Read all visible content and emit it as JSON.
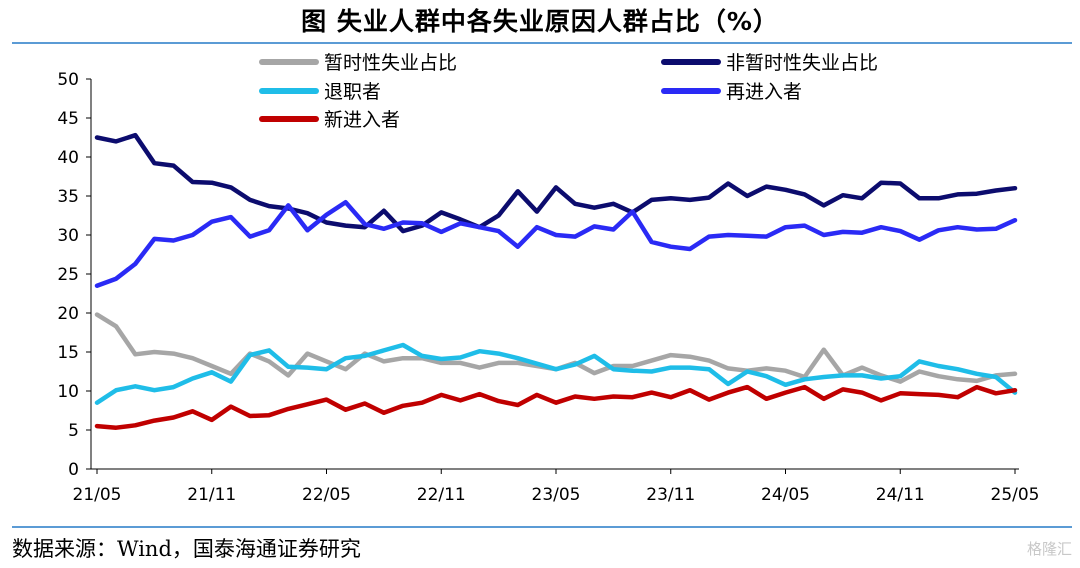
{
  "title": "图    失业人群中各失业原因人群占比（%）",
  "source": "数据来源：Wind，国泰海通证券研究",
  "watermark": "格隆汇",
  "chart_data": {
    "type": "line",
    "title": "图    失业人群中各失业原因人群占比（%）",
    "xlabel": "",
    "ylabel": "",
    "ylim": [
      0,
      50
    ],
    "yticks": [
      0,
      5,
      10,
      15,
      20,
      25,
      30,
      35,
      40,
      45,
      50
    ],
    "x_tick_labels": [
      "21/05",
      "21/11",
      "22/05",
      "22/11",
      "23/05",
      "23/11",
      "24/05",
      "24/11",
      "25/05"
    ],
    "x_tick_indices": [
      0,
      6,
      12,
      18,
      24,
      30,
      36,
      42,
      48
    ],
    "grid": false,
    "legend_position": "top",
    "series": [
      {
        "name": "暂时性失业占比",
        "color": "#a6a6a6",
        "values": [
          19.8,
          18.3,
          14.7,
          15.0,
          14.8,
          14.2,
          13.2,
          12.2,
          14.8,
          13.8,
          12.0,
          14.8,
          13.8,
          12.8,
          14.8,
          13.8,
          14.2,
          14.2,
          13.6,
          13.6,
          13.0,
          13.6,
          13.6,
          13.2,
          12.8,
          13.6,
          12.3,
          13.2,
          13.2,
          13.9,
          14.6,
          14.4,
          13.9,
          12.9,
          12.6,
          12.9,
          12.6,
          11.8,
          15.3,
          12.0,
          13.0,
          12.0,
          11.2,
          12.5,
          11.9,
          11.5,
          11.3,
          12.0,
          12.2
        ]
      },
      {
        "name": "非暂时性失业占比",
        "color": "#0c0c6e",
        "values": [
          42.5,
          42.0,
          42.8,
          39.2,
          38.9,
          36.8,
          36.7,
          36.1,
          34.5,
          33.7,
          33.4,
          32.8,
          31.6,
          31.2,
          31.0,
          33.1,
          30.5,
          31.2,
          32.9,
          32.0,
          31.0,
          32.5,
          35.6,
          33.0,
          36.1,
          34.0,
          33.5,
          34.0,
          32.9,
          34.5,
          34.7,
          34.5,
          34.8,
          36.6,
          35.0,
          36.2,
          35.8,
          35.2,
          33.8,
          35.1,
          34.7,
          36.7,
          36.6,
          34.7,
          34.7,
          35.2,
          35.3,
          35.7,
          36.0
        ]
      },
      {
        "name": "退职者",
        "color": "#1fbde8",
        "values": [
          8.5,
          10.1,
          10.6,
          10.1,
          10.5,
          11.6,
          12.4,
          11.2,
          14.6,
          15.2,
          13.1,
          13.0,
          12.8,
          14.2,
          14.5,
          15.2,
          15.9,
          14.5,
          14.1,
          14.3,
          15.1,
          14.8,
          14.2,
          13.5,
          12.8,
          13.4,
          14.5,
          12.8,
          12.6,
          12.5,
          13.0,
          13.0,
          12.8,
          10.9,
          12.5,
          11.9,
          10.8,
          11.5,
          11.8,
          12.0,
          12.0,
          11.6,
          11.9,
          13.8,
          13.2,
          12.8,
          12.2,
          11.8,
          9.8
        ]
      },
      {
        "name": "再进入者",
        "color": "#2a2af5",
        "values": [
          23.5,
          24.4,
          26.3,
          29.5,
          29.3,
          30.0,
          31.7,
          32.3,
          29.8,
          30.6,
          33.8,
          30.6,
          32.6,
          34.2,
          31.4,
          30.8,
          31.6,
          31.5,
          30.4,
          31.5,
          31.0,
          30.5,
          28.5,
          31.0,
          30.0,
          29.8,
          31.1,
          30.7,
          33.0,
          29.1,
          28.5,
          28.2,
          29.8,
          30.0,
          29.9,
          29.8,
          31.0,
          31.2,
          30.0,
          30.4,
          30.3,
          31.0,
          30.5,
          29.4,
          30.6,
          31.0,
          30.7,
          30.8,
          31.9
        ]
      },
      {
        "name": "新进入者",
        "color": "#c00000",
        "values": [
          5.5,
          5.3,
          5.6,
          6.2,
          6.6,
          7.4,
          6.3,
          8.0,
          6.8,
          6.9,
          7.7,
          8.3,
          8.9,
          7.6,
          8.4,
          7.2,
          8.1,
          8.5,
          9.5,
          8.8,
          9.6,
          8.7,
          8.2,
          9.5,
          8.5,
          9.3,
          9.0,
          9.3,
          9.2,
          9.8,
          9.2,
          10.1,
          8.9,
          9.8,
          10.5,
          9.0,
          9.8,
          10.5,
          9.0,
          10.2,
          9.8,
          8.8,
          9.7,
          9.6,
          9.5,
          9.2,
          10.5,
          9.7,
          10.1
        ]
      }
    ]
  }
}
